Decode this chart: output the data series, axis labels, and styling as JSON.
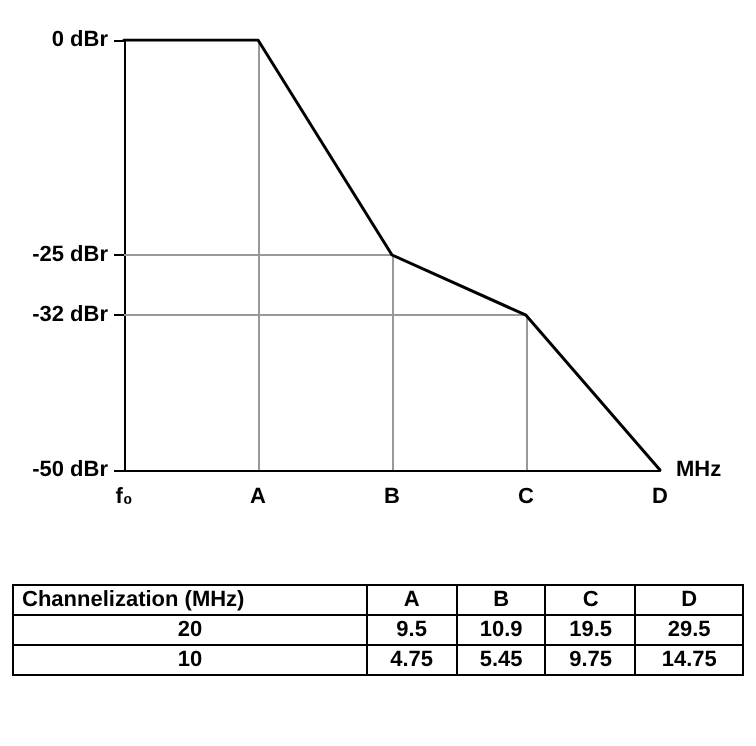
{
  "chart_data": [
    {
      "type": "line",
      "categories": [
        "f₀",
        "A",
        "B",
        "C",
        "D"
      ],
      "xlabel": "MHz",
      "series": [
        {
          "color": "#000000",
          "values": [
            0,
            0,
            -25,
            -32,
            -50
          ]
        }
      ],
      "ylim": [
        -50,
        0
      ],
      "yticks": [
        {
          "value": 0,
          "label": "0 dBr"
        },
        {
          "value": -25,
          "label": "-25 dBr"
        },
        {
          "value": -32,
          "label": "-32 dBr"
        },
        {
          "value": -50,
          "label": "-50 dBr"
        }
      ],
      "grid": false,
      "marker": "none",
      "line_style": "solid",
      "ref_lines": [
        {
          "axis": "x",
          "value": "A",
          "color": "#999999"
        },
        {
          "axis": "x",
          "value": "B",
          "color": "#999999"
        },
        {
          "axis": "x",
          "value": "C",
          "color": "#999999"
        },
        {
          "axis": "y",
          "value": -25,
          "color": "#999999"
        },
        {
          "axis": "y",
          "value": -32,
          "color": "#999999"
        }
      ]
    },
    {
      "type": "other",
      "annotations": [
        "Channelization (MHz)",
        "A",
        "B",
        "C",
        "D",
        "20",
        "9.5",
        "10.9",
        "19.5",
        "29.5",
        "10",
        "4.75",
        "5.45",
        "9.75",
        "14.75"
      ]
    }
  ]
}
